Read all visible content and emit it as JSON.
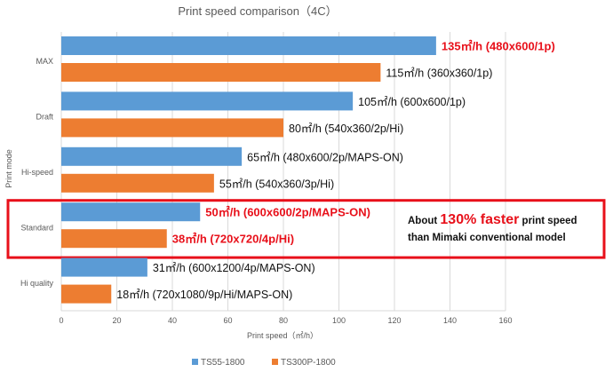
{
  "chart_data": {
    "type": "bar",
    "orientation": "horizontal",
    "title": "Print speed comparison（4C）",
    "xlabel": "Print speed（㎡/h）",
    "ylabel": "Print mode",
    "xlim": [
      0,
      160
    ],
    "xticks": [
      "0",
      "20",
      "40",
      "60",
      "80",
      "100",
      "120",
      "140",
      "160"
    ],
    "grid": "vertical",
    "legend_position": "bottom",
    "categories": [
      "MAX",
      "Draft",
      "Hi-speed",
      "Standard",
      "Hi quality"
    ],
    "series": [
      {
        "name": "TS55-1800",
        "color": "#5b9bd5",
        "values": [
          135,
          105,
          65,
          50,
          31
        ],
        "labels": [
          "135㎡/h (480x600/1p)",
          "105㎡/h (600x600/1p)",
          "65㎡/h (480x600/2p/MAPS-ON)",
          "50㎡/h (600x600/2p/MAPS-ON)",
          "31㎡/h (600x1200/4p/MAPS-ON)"
        ],
        "highlight": [
          true,
          false,
          false,
          true,
          false
        ]
      },
      {
        "name": "TS300P-1800",
        "color": "#ed7d31",
        "values": [
          115,
          80,
          55,
          38,
          18
        ],
        "labels": [
          "115㎡/h (360x360/1p)",
          "80㎡/h (540x360/2p/Hi)",
          "55㎡/h (540x360/3p/Hi)",
          "38㎡/h (720x720/4p/Hi)",
          "18㎡/h (720x1080/9p/Hi/MAPS-ON)"
        ],
        "highlight": [
          false,
          false,
          false,
          true,
          false
        ]
      }
    ],
    "highlight_box_category": "Standard",
    "highlight_color": "#e8101a"
  },
  "callout": {
    "prefix": "About ",
    "emphasis": "130% faster",
    "suffix": " print speed",
    "line2": "than Mimaki conventional model"
  }
}
